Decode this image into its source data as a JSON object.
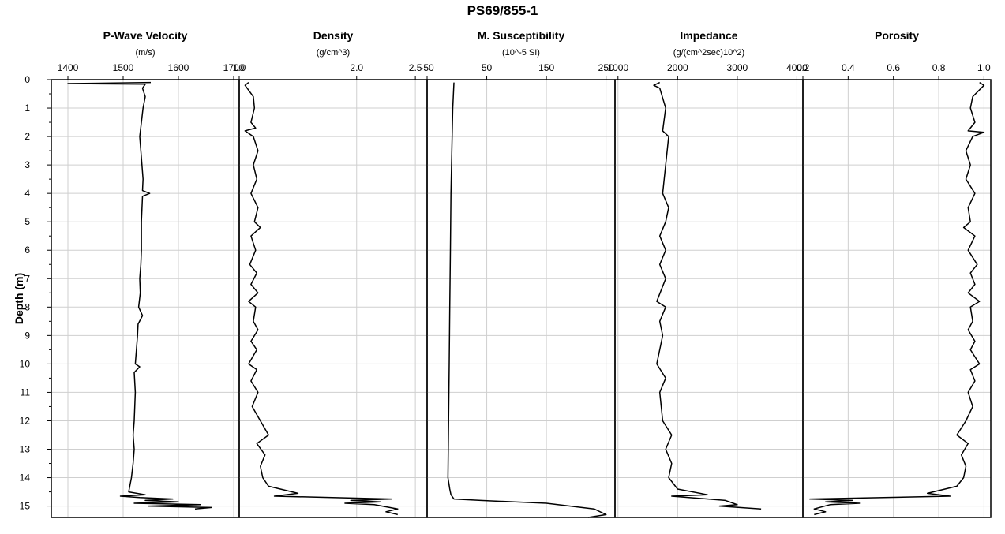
{
  "chart_data": {
    "type": "line",
    "title": "PS69/855-1",
    "ylabel": "Depth (m)",
    "ylim": [
      0,
      15.4
    ],
    "yticks": [
      0,
      1,
      2,
      3,
      4,
      5,
      6,
      7,
      8,
      9,
      10,
      11,
      12,
      13,
      14,
      15
    ],
    "grid": true,
    "panels": [
      {
        "title": "P-Wave Velocity",
        "unit": "(m/s)",
        "xlim": [
          1370,
          1710
        ],
        "xticks": [
          1400,
          1500,
          1600,
          1700
        ],
        "points": [
          [
            1550,
            0.1
          ],
          [
            1400,
            0.14
          ],
          [
            1540,
            0.16
          ],
          [
            1535,
            0.3
          ],
          [
            1540,
            0.6
          ],
          [
            1536,
            1.0
          ],
          [
            1533,
            1.5
          ],
          [
            1530,
            2.0
          ],
          [
            1532,
            2.5
          ],
          [
            1534,
            3.0
          ],
          [
            1536,
            3.5
          ],
          [
            1535,
            3.9
          ],
          [
            1548,
            4.0
          ],
          [
            1535,
            4.1
          ],
          [
            1533,
            5.0
          ],
          [
            1533,
            6.0
          ],
          [
            1532,
            6.5
          ],
          [
            1530,
            7.0
          ],
          [
            1531,
            7.5
          ],
          [
            1528,
            8.0
          ],
          [
            1535,
            8.3
          ],
          [
            1527,
            8.6
          ],
          [
            1526,
            9.0
          ],
          [
            1524,
            9.5
          ],
          [
            1522,
            10.0
          ],
          [
            1530,
            10.1
          ],
          [
            1520,
            10.3
          ],
          [
            1522,
            11.0
          ],
          [
            1520,
            12.0
          ],
          [
            1518,
            12.5
          ],
          [
            1520,
            13.0
          ],
          [
            1518,
            13.5
          ],
          [
            1515,
            14.0
          ],
          [
            1512,
            14.3
          ],
          [
            1510,
            14.5
          ],
          [
            1540,
            14.6
          ],
          [
            1495,
            14.65
          ],
          [
            1530,
            14.7
          ],
          [
            1590,
            14.75
          ],
          [
            1540,
            14.8
          ],
          [
            1600,
            14.85
          ],
          [
            1520,
            14.9
          ],
          [
            1640,
            14.95
          ],
          [
            1545,
            15.0
          ],
          [
            1660,
            15.05
          ],
          [
            1630,
            15.1
          ]
        ]
      },
      {
        "title": "Density",
        "unit": "(g/cm^3)",
        "xlim": [
          1.0,
          2.6
        ],
        "xticks": [
          1.0,
          2.0,
          2.5
        ],
        "xticklabels": [
          "1.0",
          "2.0",
          "2.5"
        ],
        "points": [
          [
            1.08,
            0.1
          ],
          [
            1.05,
            0.2
          ],
          [
            1.12,
            0.6
          ],
          [
            1.13,
            1.0
          ],
          [
            1.1,
            1.5
          ],
          [
            1.14,
            1.7
          ],
          [
            1.05,
            1.8
          ],
          [
            1.12,
            2.0
          ],
          [
            1.16,
            2.5
          ],
          [
            1.12,
            3.0
          ],
          [
            1.15,
            3.5
          ],
          [
            1.1,
            4.0
          ],
          [
            1.16,
            4.5
          ],
          [
            1.13,
            5.0
          ],
          [
            1.18,
            5.2
          ],
          [
            1.1,
            5.5
          ],
          [
            1.14,
            6.0
          ],
          [
            1.09,
            6.5
          ],
          [
            1.15,
            6.8
          ],
          [
            1.1,
            7.2
          ],
          [
            1.16,
            7.5
          ],
          [
            1.08,
            7.8
          ],
          [
            1.14,
            8.0
          ],
          [
            1.12,
            8.5
          ],
          [
            1.16,
            8.8
          ],
          [
            1.1,
            9.2
          ],
          [
            1.15,
            9.5
          ],
          [
            1.08,
            10.0
          ],
          [
            1.15,
            10.2
          ],
          [
            1.1,
            10.6
          ],
          [
            1.16,
            11.0
          ],
          [
            1.11,
            11.5
          ],
          [
            1.18,
            12.0
          ],
          [
            1.25,
            12.5
          ],
          [
            1.15,
            12.8
          ],
          [
            1.22,
            13.2
          ],
          [
            1.18,
            13.6
          ],
          [
            1.2,
            14.0
          ],
          [
            1.25,
            14.3
          ],
          [
            1.5,
            14.55
          ],
          [
            1.3,
            14.65
          ],
          [
            2.3,
            14.75
          ],
          [
            1.95,
            14.8
          ],
          [
            2.2,
            14.85
          ],
          [
            1.9,
            14.9
          ],
          [
            2.15,
            14.95
          ],
          [
            2.35,
            15.1
          ],
          [
            2.25,
            15.2
          ],
          [
            2.35,
            15.3
          ]
        ]
      },
      {
        "title": "M. Susceptibility",
        "unit": "(10^-5 SI)",
        "xlim": [
          -50,
          265
        ],
        "xticks": [
          -50,
          50,
          150,
          250
        ],
        "points": [
          [
            -5,
            0.1
          ],
          [
            -7,
            1.0
          ],
          [
            -8,
            2.0
          ],
          [
            -10,
            4.0
          ],
          [
            -11,
            6.0
          ],
          [
            -12,
            8.0
          ],
          [
            -13,
            10.0
          ],
          [
            -14,
            12.0
          ],
          [
            -15,
            14.0
          ],
          [
            -12,
            14.4
          ],
          [
            -10,
            14.6
          ],
          [
            -5,
            14.75
          ],
          [
            40,
            14.8
          ],
          [
            150,
            14.9
          ],
          [
            230,
            15.1
          ],
          [
            250,
            15.3
          ],
          [
            220,
            15.4
          ]
        ]
      },
      {
        "title": "Impedance",
        "unit": "(g/(cm^2sec)10^2)",
        "xlim": [
          950,
          4100
        ],
        "xticks": [
          1000,
          2000,
          3000,
          4000
        ],
        "points": [
          [
            1700,
            0.1
          ],
          [
            1600,
            0.2
          ],
          [
            1700,
            0.3
          ],
          [
            1800,
            1.0
          ],
          [
            1750,
            1.8
          ],
          [
            1850,
            2.0
          ],
          [
            1800,
            3.0
          ],
          [
            1750,
            4.0
          ],
          [
            1850,
            4.5
          ],
          [
            1800,
            5.0
          ],
          [
            1700,
            5.5
          ],
          [
            1800,
            6.0
          ],
          [
            1700,
            6.5
          ],
          [
            1800,
            7.0
          ],
          [
            1650,
            7.8
          ],
          [
            1800,
            8.0
          ],
          [
            1700,
            8.5
          ],
          [
            1750,
            9.0
          ],
          [
            1650,
            10.0
          ],
          [
            1800,
            10.5
          ],
          [
            1700,
            11.0
          ],
          [
            1750,
            12.0
          ],
          [
            1900,
            12.5
          ],
          [
            1800,
            13.0
          ],
          [
            1900,
            13.5
          ],
          [
            1850,
            14.0
          ],
          [
            2000,
            14.4
          ],
          [
            2500,
            14.6
          ],
          [
            1900,
            14.65
          ],
          [
            2800,
            14.8
          ],
          [
            3000,
            14.95
          ],
          [
            2700,
            15.0
          ],
          [
            3400,
            15.1
          ]
        ]
      },
      {
        "title": "Porosity",
        "unit": "",
        "xlim": [
          0.2,
          1.03
        ],
        "xticks": [
          0.2,
          0.4,
          0.6,
          0.8,
          1.0
        ],
        "xticklabels": [
          "0.2",
          "0.4",
          "0.6",
          "0.8",
          "1.0"
        ],
        "points": [
          [
            0.98,
            0.1
          ],
          [
            1.0,
            0.2
          ],
          [
            0.95,
            0.6
          ],
          [
            0.94,
            1.0
          ],
          [
            0.96,
            1.5
          ],
          [
            0.93,
            1.8
          ],
          [
            1.0,
            1.85
          ],
          [
            0.95,
            2.0
          ],
          [
            0.92,
            2.5
          ],
          [
            0.94,
            3.0
          ],
          [
            0.92,
            3.5
          ],
          [
            0.96,
            4.0
          ],
          [
            0.93,
            4.5
          ],
          [
            0.94,
            5.0
          ],
          [
            0.91,
            5.2
          ],
          [
            0.96,
            5.5
          ],
          [
            0.93,
            6.0
          ],
          [
            0.97,
            6.5
          ],
          [
            0.94,
            6.8
          ],
          [
            0.96,
            7.2
          ],
          [
            0.93,
            7.5
          ],
          [
            0.98,
            7.8
          ],
          [
            0.94,
            8.0
          ],
          [
            0.95,
            8.5
          ],
          [
            0.93,
            8.8
          ],
          [
            0.96,
            9.2
          ],
          [
            0.94,
            9.5
          ],
          [
            0.98,
            10.0
          ],
          [
            0.94,
            10.2
          ],
          [
            0.96,
            10.6
          ],
          [
            0.93,
            11.0
          ],
          [
            0.95,
            11.5
          ],
          [
            0.92,
            12.0
          ],
          [
            0.88,
            12.5
          ],
          [
            0.93,
            12.8
          ],
          [
            0.9,
            13.2
          ],
          [
            0.92,
            13.6
          ],
          [
            0.91,
            14.0
          ],
          [
            0.88,
            14.3
          ],
          [
            0.75,
            14.55
          ],
          [
            0.85,
            14.65
          ],
          [
            0.23,
            14.75
          ],
          [
            0.42,
            14.8
          ],
          [
            0.3,
            14.85
          ],
          [
            0.45,
            14.9
          ],
          [
            0.32,
            14.95
          ],
          [
            0.25,
            15.1
          ],
          [
            0.3,
            15.2
          ],
          [
            0.25,
            15.3
          ]
        ]
      }
    ]
  }
}
